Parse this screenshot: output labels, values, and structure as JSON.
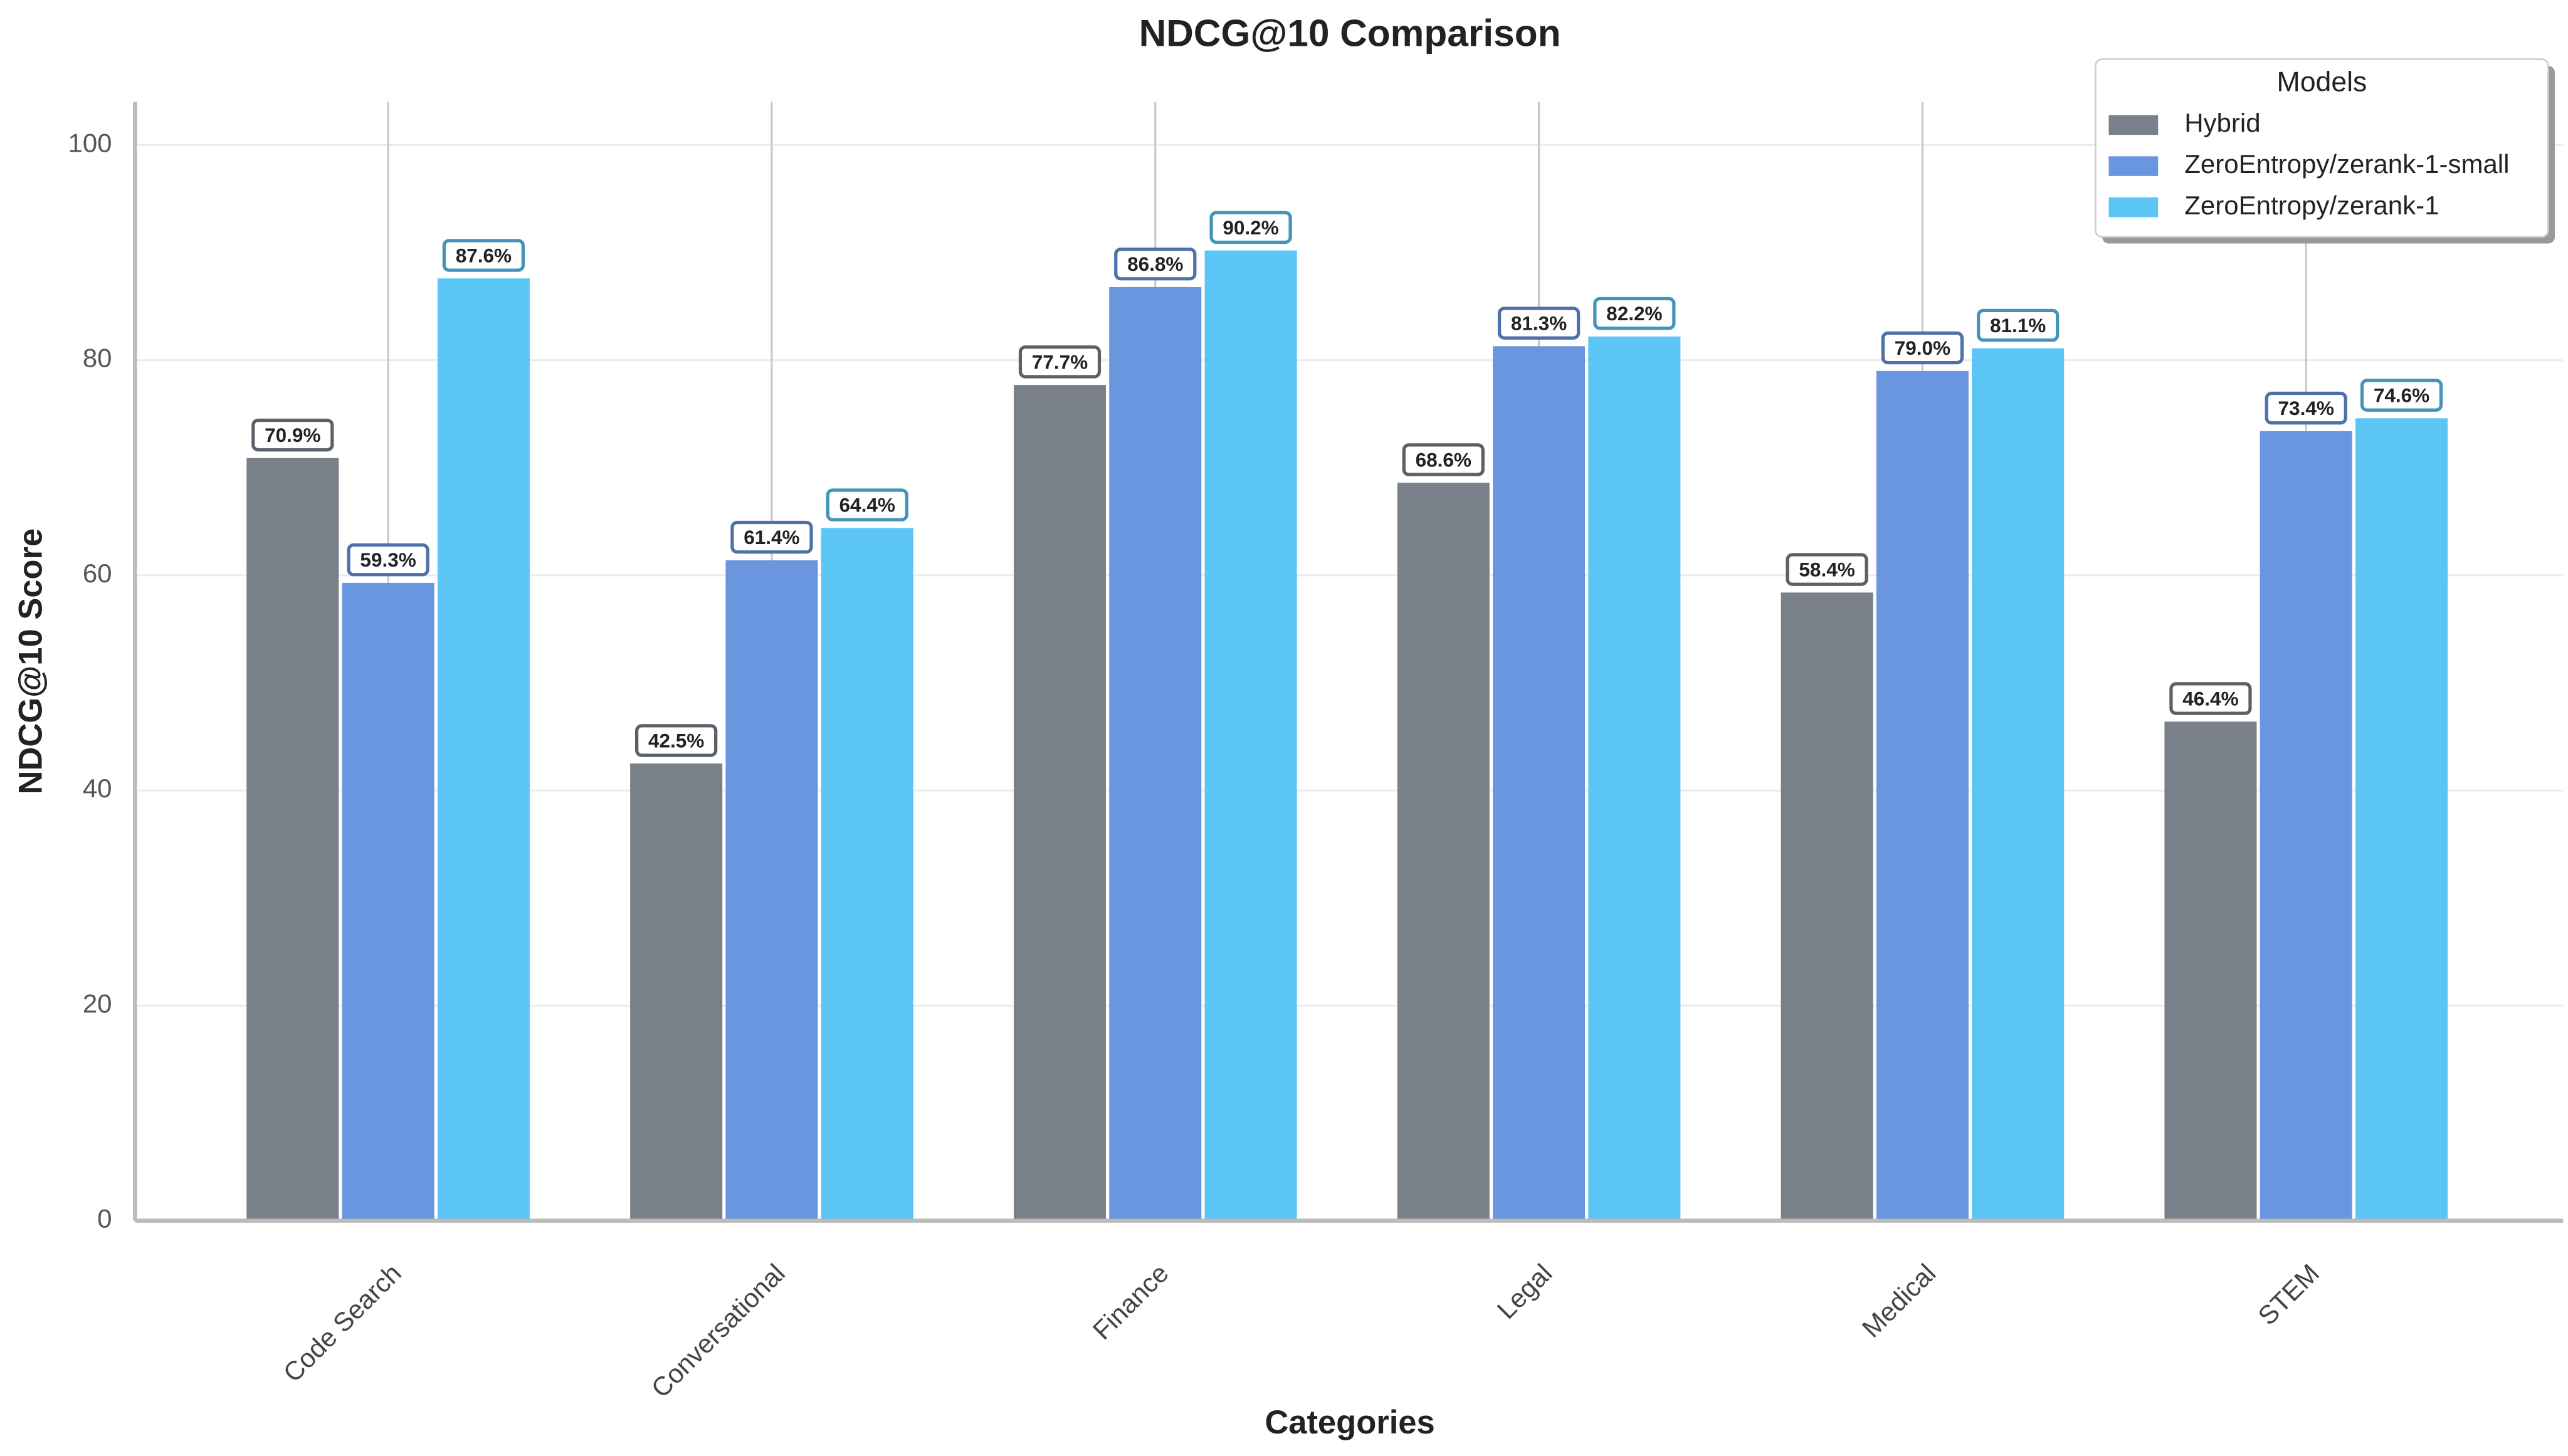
{
  "chart_data": {
    "type": "bar",
    "title": "NDCG@10 Comparison",
    "x_label": "Categories",
    "y_label": "NDCG@10 Score",
    "categories": [
      "Code Search",
      "Conversational",
      "Finance",
      "Legal",
      "Medical",
      "STEM"
    ],
    "series": [
      {
        "name": "Hybrid",
        "color": "#7a808a",
        "values": [
          70.9,
          42.5,
          77.7,
          68.6,
          58.4,
          46.4
        ],
        "value_labels": [
          "70.9%",
          "42.5%",
          "77.7%",
          "68.6%",
          "58.4%",
          "46.4%"
        ]
      },
      {
        "name": "ZeroEntropy/zerank-1-small",
        "color": "#6a96e0",
        "values": [
          59.3,
          61.4,
          86.8,
          81.3,
          79.0,
          73.4
        ],
        "value_labels": [
          "59.3%",
          "61.4%",
          "86.8%",
          "81.3%",
          "79.0%",
          "73.4%"
        ]
      },
      {
        "name": "ZeroEntropy/zerank-1",
        "color": "#5bc5f5",
        "values": [
          87.6,
          64.4,
          90.2,
          82.2,
          81.1,
          74.6
        ],
        "value_labels": [
          "87.6%",
          "64.4%",
          "90.2%",
          "82.2%",
          "81.1%",
          "74.6%"
        ]
      }
    ],
    "legend_title": "Models",
    "legend_position": "upper right",
    "ylim": [
      0,
      104
    ],
    "yticks": [
      0,
      20,
      40,
      60,
      80,
      100
    ],
    "grid": true
  }
}
